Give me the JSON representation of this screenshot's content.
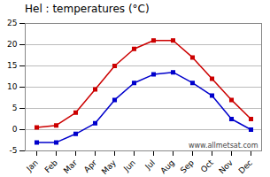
{
  "chart_data": {
    "type": "line",
    "title": "Hel : temperatures (°C)",
    "categories": [
      "Jan",
      "Feb",
      "Mar",
      "Apr",
      "May",
      "Jun",
      "Jul",
      "Aug",
      "Sep",
      "Oct",
      "Nov",
      "Dec"
    ],
    "series": [
      {
        "color": "#cc0000",
        "marker": "square",
        "values": [
          0.5,
          1.0,
          4.0,
          9.5,
          15.0,
          19.0,
          21.0,
          21.0,
          17.0,
          12.0,
          7.0,
          2.5
        ]
      },
      {
        "color": "#0000cc",
        "marker": "square",
        "values": [
          -3.0,
          -3.0,
          -1.0,
          1.5,
          7.0,
          11.0,
          13.0,
          13.5,
          11.0,
          8.0,
          2.5,
          0.0
        ]
      }
    ],
    "ylim": [
      -5,
      25
    ],
    "yticks": [
      -5,
      0,
      5,
      10,
      15,
      20,
      25
    ],
    "grid": "y",
    "annotations": [
      "www.allmetsat.com"
    ]
  }
}
